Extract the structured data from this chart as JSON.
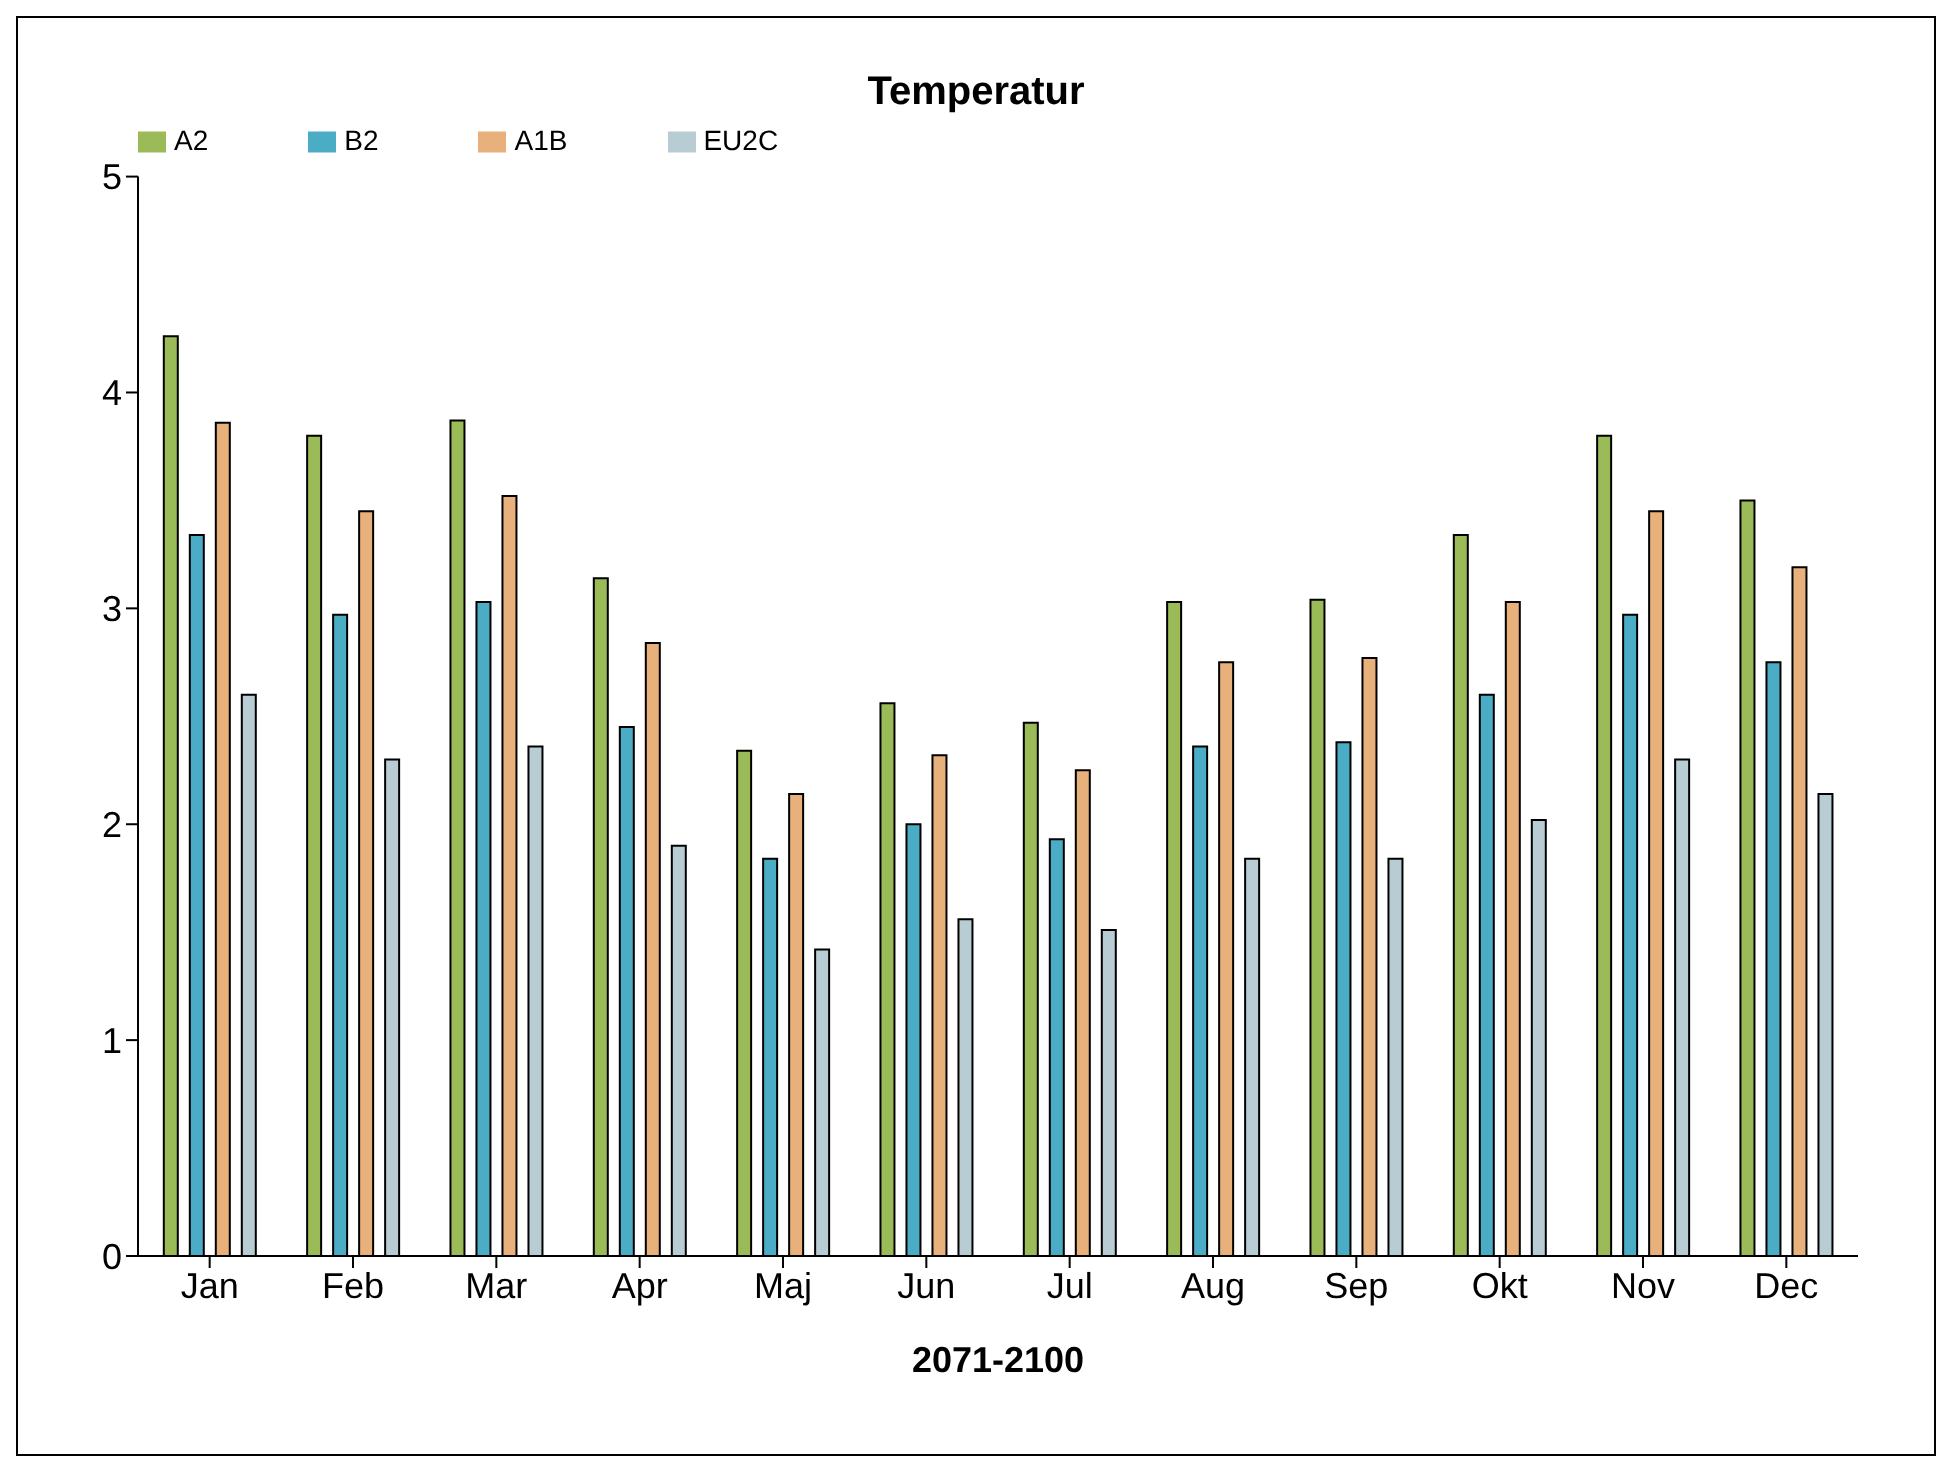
{
  "chart_data": {
    "type": "bar",
    "title": "Temperatur",
    "xlabel": "2071-2100",
    "categories": [
      "Jan",
      "Feb",
      "Mar",
      "Apr",
      "Maj",
      "Jun",
      "Jul",
      "Aug",
      "Sep",
      "Okt",
      "Nov",
      "Dec"
    ],
    "series": [
      {
        "name": "A2",
        "color": "#9bbb59",
        "values": [
          4.26,
          3.8,
          3.87,
          3.14,
          2.34,
          2.56,
          2.47,
          3.03,
          3.04,
          3.34,
          3.8,
          3.5
        ]
      },
      {
        "name": "B2",
        "color": "#4bacc6",
        "values": [
          3.34,
          2.97,
          3.03,
          2.45,
          1.84,
          2.0,
          1.93,
          2.36,
          2.38,
          2.6,
          2.97,
          2.75
        ]
      },
      {
        "name": "A1B",
        "color": "#e8b07a",
        "values": [
          3.86,
          3.45,
          3.52,
          2.84,
          2.14,
          2.32,
          2.25,
          2.75,
          2.77,
          3.03,
          3.45,
          3.19
        ]
      },
      {
        "name": "EU2C",
        "color": "#b7ccd3",
        "values": [
          2.6,
          2.3,
          2.36,
          1.9,
          1.42,
          1.56,
          1.51,
          1.84,
          1.84,
          2.02,
          2.3,
          2.14
        ]
      }
    ],
    "ylim": [
      0,
      5
    ],
    "yticks": [
      0,
      1,
      2,
      3,
      4,
      5
    ],
    "grid": false,
    "legend": "top left"
  }
}
